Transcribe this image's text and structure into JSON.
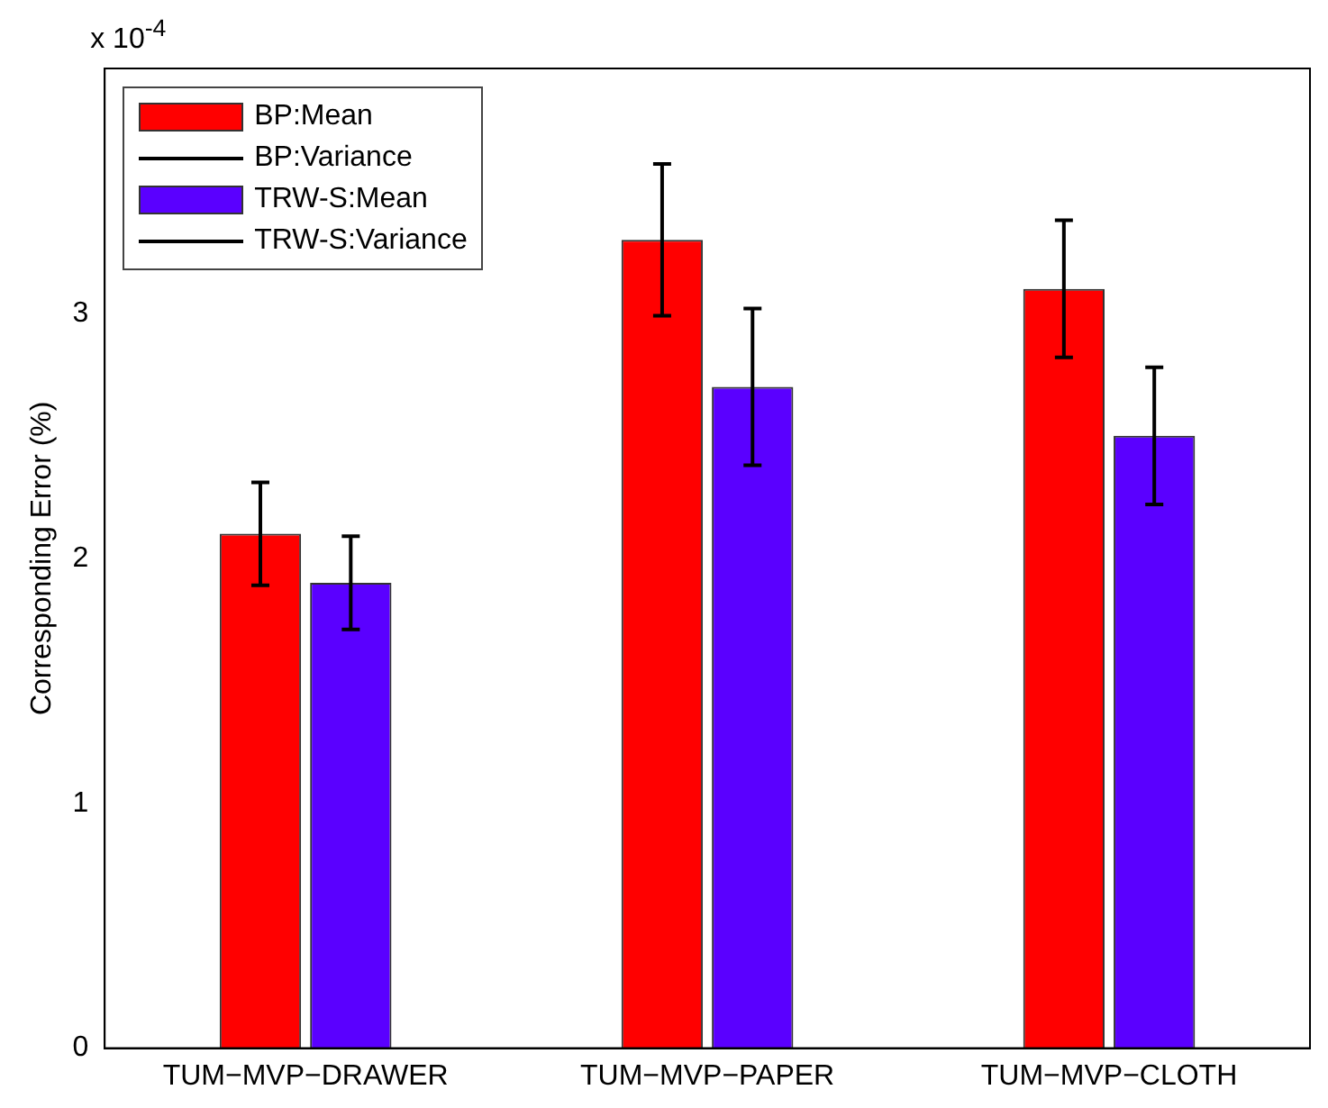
{
  "chart_data": {
    "type": "bar",
    "categories": [
      "TUM−MVP−DRAWER",
      "TUM−MVP−PAPER",
      "TUM−MVP−CLOTH"
    ],
    "ylabel": "Corresponding Error (%)",
    "annotations": [
      "x 10$^{-4}$",
      "BP:Variance",
      "TRW-S:Variance"
    ],
    "series": [
      {
        "name": "BP:Mean",
        "color": "#ff0000",
        "values": [
          2.1,
          3.3,
          3.1
        ],
        "errors": [
          0.21,
          0.31,
          0.28
        ]
      },
      {
        "name": "TRW-S:Mean",
        "color": "#5a00ff",
        "values": [
          1.9,
          2.7,
          2.5
        ],
        "errors": [
          0.19,
          0.32,
          0.28
        ]
      }
    ],
    "ylim": [
      0,
      4
    ],
    "yticks": [
      0,
      1,
      2,
      3
    ],
    "grid": false,
    "legend": "top left"
  }
}
